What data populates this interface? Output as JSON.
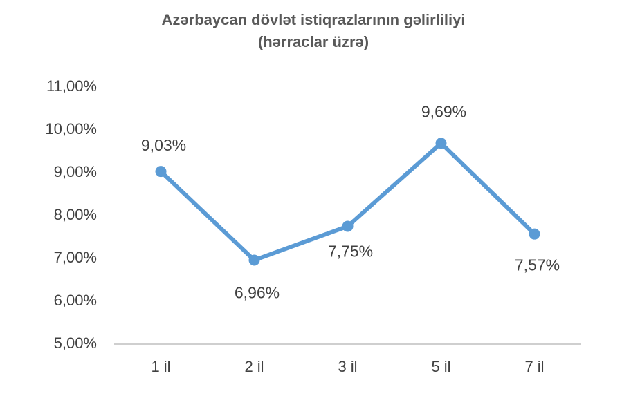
{
  "chart_data": {
    "type": "line",
    "title": "Azərbaycan dövlət istiqrazlarının gəlirliliyi",
    "subtitle": "(hərraclar üzrə)",
    "categories": [
      "1 il",
      "2 il",
      "3 il",
      "5 il",
      "7 il"
    ],
    "values": [
      9.03,
      6.96,
      7.75,
      9.69,
      7.57
    ],
    "value_labels": [
      "9,03%",
      "6,96%",
      "7,75%",
      "9,69%",
      "7,57%"
    ],
    "color": "#5b9bd5",
    "ylim": [
      5,
      11
    ],
    "yticks": [
      {
        "value": 5,
        "label": "5,00%"
      },
      {
        "value": 6,
        "label": "6,00%"
      },
      {
        "value": 7,
        "label": "7,00%"
      },
      {
        "value": 8,
        "label": "8,00%"
      },
      {
        "value": 9,
        "label": "9,00%"
      },
      {
        "value": 10,
        "label": "10,00%"
      },
      {
        "value": 11,
        "label": "11,00%"
      }
    ],
    "grid": false
  }
}
